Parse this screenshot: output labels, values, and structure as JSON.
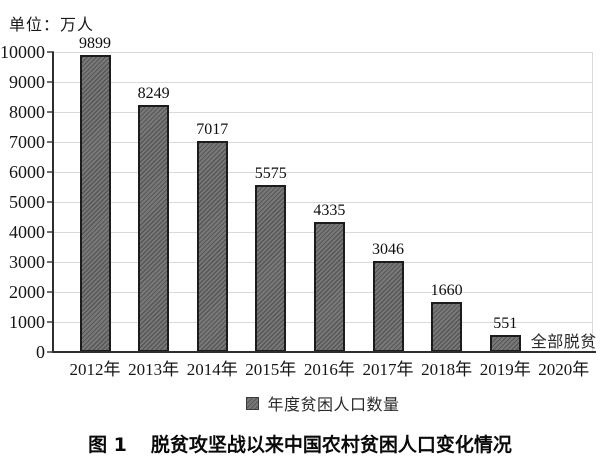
{
  "chart_data": {
    "type": "bar",
    "unit_label": "单位：万人",
    "categories": [
      "2012年",
      "2013年",
      "2014年",
      "2015年",
      "2016年",
      "2017年",
      "2018年",
      "2019年",
      "2020年"
    ],
    "series": [
      {
        "name": "年度贫困人口数量",
        "values": [
          9899,
          8249,
          7017,
          5575,
          4335,
          3046,
          1660,
          551,
          null
        ]
      }
    ],
    "data_labels_shown": true,
    "annotations": [
      {
        "category": "2020年",
        "text": "全部脱贫"
      }
    ],
    "legend": [
      "年度贫困人口数量"
    ],
    "legend_position": "bottom",
    "ylim": [
      0,
      10000
    ],
    "ytick_step": 1000,
    "ytick_labels": [
      "0",
      "1000",
      "2000",
      "3000",
      "4000",
      "5000",
      "6000",
      "7000",
      "8000",
      "9000",
      "10000"
    ],
    "grid": true,
    "bar_fill": "#6e6e6e",
    "bar_hatch": "diagonal-forward",
    "bar_border_color": "#1c1c1c",
    "gridline_color": "#d9d9d9",
    "axis_color": "#2e2e2e",
    "text_color": "#111111"
  },
  "caption": {
    "figure_label": "图 1",
    "title": "脱贫攻坚战以来中国农村贫困人口变化情况"
  }
}
